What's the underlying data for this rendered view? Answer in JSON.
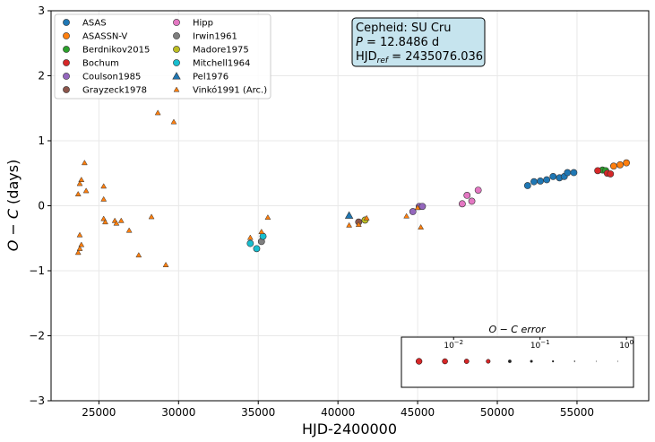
{
  "chart_data": {
    "type": "scatter",
    "title": "",
    "xlabel": "HJD-2400000",
    "ylabel_main": "O − C",
    "ylabel_unit": "(days)",
    "xlim": [
      22000,
      59500
    ],
    "ylim": [
      -3,
      3
    ],
    "xticks": [
      25000,
      30000,
      35000,
      40000,
      45000,
      50000,
      55000
    ],
    "yticks": [
      -3,
      -2,
      -1,
      0,
      1,
      2,
      3
    ],
    "grid": true,
    "legend_position": "top-left",
    "annotation": {
      "line1": "Cepheid: SU Cru",
      "line2_label": "P",
      "line2_value": " = 12.8486 d",
      "line3_label": "HJD",
      "line3_sub": "ref",
      "line3_value": " = 2435076.036"
    },
    "error_legend": {
      "title": "O − C error",
      "ticks": [
        {
          "base": "10",
          "exp": "−2",
          "logv": -2
        },
        {
          "base": "10",
          "exp": "−1",
          "logv": -1
        },
        {
          "base": "10",
          "exp": "0",
          "logv": 0
        }
      ],
      "logmin": -2.5,
      "logmax": 0.05,
      "sizes": [
        -2.4,
        -2.1,
        -1.85,
        -1.6,
        -1.35,
        -1.1,
        -0.85,
        -0.6,
        -0.35,
        -0.1
      ]
    },
    "series": [
      {
        "name": "ASAS",
        "color": "#1f77b4",
        "marker": "circle",
        "points": [
          [
            51900,
            0.31
          ],
          [
            52300,
            0.37
          ],
          [
            52700,
            0.38
          ],
          [
            53100,
            0.4
          ],
          [
            53500,
            0.45
          ],
          [
            53900,
            0.43
          ],
          [
            54200,
            0.45
          ],
          [
            54400,
            0.51
          ],
          [
            54800,
            0.51
          ]
        ]
      },
      {
        "name": "ASASSN-V",
        "color": "#ff7f0e",
        "marker": "circle",
        "points": [
          [
            57300,
            0.61
          ],
          [
            57700,
            0.63
          ],
          [
            58100,
            0.66
          ]
        ]
      },
      {
        "name": "Berdnikov2015",
        "color": "#2ca02c",
        "marker": "circle",
        "points": [
          [
            56600,
            0.55
          ],
          [
            56800,
            0.54
          ]
        ]
      },
      {
        "name": "Bochum",
        "color": "#d62728",
        "marker": "circle",
        "points": [
          [
            56300,
            0.54
          ],
          [
            56900,
            0.5
          ],
          [
            57100,
            0.49
          ]
        ]
      },
      {
        "name": "Coulson1985",
        "color": "#9467bd",
        "marker": "circle",
        "points": [
          [
            44700,
            -0.09
          ],
          [
            45100,
            -0.01
          ],
          [
            45300,
            -0.01
          ]
        ]
      },
      {
        "name": "Grayzeck1978",
        "color": "#8c564b",
        "marker": "circle",
        "points": [
          [
            41300,
            -0.25
          ]
        ]
      },
      {
        "name": "Hipp",
        "color": "#e377c2",
        "marker": "circle",
        "points": [
          [
            47800,
            0.03
          ],
          [
            48100,
            0.16
          ],
          [
            48400,
            0.07
          ],
          [
            48800,
            0.24
          ]
        ]
      },
      {
        "name": "Irwin1961",
        "color": "#7f7f7f",
        "marker": "circle",
        "points": [
          [
            35200,
            -0.55
          ]
        ]
      },
      {
        "name": "Madore1975",
        "color": "#bcbd22",
        "marker": "circle",
        "points": [
          [
            41700,
            -0.22
          ]
        ]
      },
      {
        "name": "Mitchell1964",
        "color": "#17becf",
        "marker": "circle",
        "points": [
          [
            34500,
            -0.58
          ],
          [
            34900,
            -0.66
          ],
          [
            35300,
            -0.47
          ]
        ]
      },
      {
        "name": "Pel1976",
        "color": "#1f77b4",
        "marker": "triangle-large",
        "points": [
          [
            40700,
            -0.15
          ]
        ]
      },
      {
        "name": "Vinkó1991 (Arc.)",
        "color": "#ff7f0e",
        "marker": "triangle-small",
        "points": [
          [
            23700,
            0.18
          ],
          [
            23900,
            0.4
          ],
          [
            23800,
            0.34
          ],
          [
            24100,
            0.66
          ],
          [
            24200,
            0.23
          ],
          [
            23800,
            -0.45
          ],
          [
            23900,
            -0.6
          ],
          [
            23800,
            -0.66
          ],
          [
            23700,
            -0.72
          ],
          [
            25300,
            0.3
          ],
          [
            25300,
            0.1
          ],
          [
            25300,
            -0.2
          ],
          [
            25400,
            -0.25
          ],
          [
            26000,
            -0.23
          ],
          [
            26100,
            -0.27
          ],
          [
            26400,
            -0.23
          ],
          [
            26900,
            -0.38
          ],
          [
            27500,
            -0.76
          ],
          [
            28300,
            -0.17
          ],
          [
            28700,
            1.43
          ],
          [
            29200,
            -0.91
          ],
          [
            29700,
            1.29
          ],
          [
            34500,
            -0.49
          ],
          [
            35200,
            -0.4
          ],
          [
            35600,
            -0.18
          ],
          [
            40700,
            -0.3
          ],
          [
            41300,
            -0.29
          ],
          [
            41800,
            -0.19
          ],
          [
            44300,
            -0.16
          ],
          [
            45000,
            -0.03
          ],
          [
            45200,
            -0.33
          ]
        ]
      }
    ]
  }
}
